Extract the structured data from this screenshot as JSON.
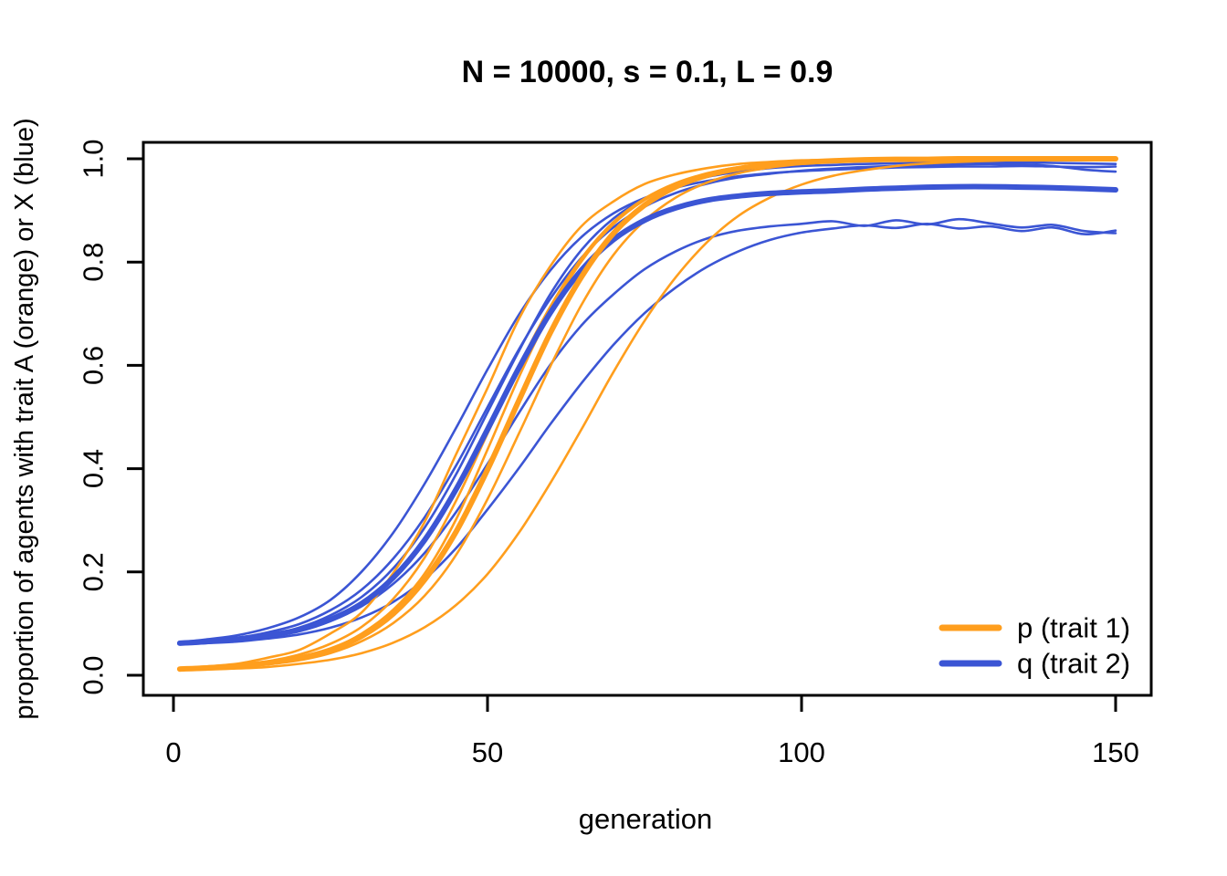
{
  "title": "N = 10000, s = 0.1, L = 0.9",
  "axes": {
    "x": {
      "label": "generation",
      "range": [
        0,
        150
      ],
      "ticks": [
        {
          "v": 0,
          "label": "0"
        },
        {
          "v": 50,
          "label": "50"
        },
        {
          "v": 100,
          "label": "100"
        },
        {
          "v": 150,
          "label": "150"
        }
      ]
    },
    "y": {
      "label": "proportion of agents with trait A (orange) or X (blue)",
      "range": [
        0,
        1
      ],
      "ticks": [
        {
          "v": 0.0,
          "label": "0.0"
        },
        {
          "v": 0.2,
          "label": "0.2"
        },
        {
          "v": 0.4,
          "label": "0.4"
        },
        {
          "v": 0.6,
          "label": "0.6"
        },
        {
          "v": 0.8,
          "label": "0.8"
        },
        {
          "v": 1.0,
          "label": "1.0"
        }
      ]
    }
  },
  "colors": {
    "p": "#FF9E1D",
    "q": "#3B55D4",
    "axis": "#000000"
  },
  "legend": [
    {
      "label": "p (trait 1)",
      "color_key": "p"
    },
    {
      "label": "q (trait 2)",
      "color_key": "q"
    }
  ],
  "chart_data": {
    "type": "line",
    "title": "N = 10000, s = 0.1, L = 0.9",
    "xlabel": "generation",
    "ylabel": "proportion of agents with trait A (orange) or X (blue)",
    "xlim": [
      0,
      150
    ],
    "ylim": [
      0,
      1
    ],
    "grid": false,
    "legend_position": "bottom-right",
    "x": [
      1,
      5,
      10,
      15,
      20,
      25,
      30,
      35,
      40,
      45,
      50,
      55,
      60,
      65,
      70,
      75,
      80,
      85,
      90,
      95,
      100,
      105,
      110,
      115,
      120,
      125,
      130,
      135,
      140,
      145,
      150
    ],
    "series": [
      {
        "name": "q run 1",
        "color_key": "q",
        "role": "run",
        "width": 2.6,
        "values": [
          0.064,
          0.069,
          0.077,
          0.091,
          0.112,
          0.146,
          0.201,
          0.276,
          0.371,
          0.479,
          0.592,
          0.698,
          0.784,
          0.849,
          0.894,
          0.924,
          0.944,
          0.957,
          0.966,
          0.972,
          0.976,
          0.979,
          0.981,
          0.983,
          0.984,
          0.985,
          0.985,
          0.986,
          0.985,
          0.984,
          0.985
        ]
      },
      {
        "name": "q run 2",
        "color_key": "q",
        "role": "run",
        "width": 2.6,
        "values": [
          0.062,
          0.066,
          0.072,
          0.083,
          0.099,
          0.126,
          0.166,
          0.226,
          0.306,
          0.406,
          0.519,
          0.631,
          0.729,
          0.809,
          0.867,
          0.907,
          0.934,
          0.952,
          0.964,
          0.971,
          0.977,
          0.981,
          0.984,
          0.986,
          0.988,
          0.989,
          0.99,
          0.989,
          0.986,
          0.979,
          0.975
        ]
      },
      {
        "name": "q run 3",
        "color_key": "q",
        "role": "run",
        "width": 2.6,
        "values": [
          0.061,
          0.064,
          0.069,
          0.078,
          0.092,
          0.116,
          0.152,
          0.207,
          0.286,
          0.389,
          0.509,
          0.628,
          0.738,
          0.824,
          0.884,
          0.923,
          0.949,
          0.965,
          0.975,
          0.982,
          0.986,
          0.988,
          0.99,
          0.991,
          0.992,
          0.992,
          0.993,
          0.993,
          0.992,
          0.991,
          0.99
        ]
      },
      {
        "name": "q run 4",
        "color_key": "q",
        "role": "run",
        "width": 2.6,
        "values": [
          0.06,
          0.063,
          0.068,
          0.075,
          0.087,
          0.105,
          0.134,
          0.177,
          0.237,
          0.316,
          0.409,
          0.508,
          0.601,
          0.678,
          0.737,
          0.786,
          0.821,
          0.846,
          0.861,
          0.869,
          0.874,
          0.879,
          0.87,
          0.881,
          0.873,
          0.883,
          0.875,
          0.867,
          0.872,
          0.86,
          0.856
        ]
      },
      {
        "name": "q run 5",
        "color_key": "q",
        "role": "run",
        "width": 2.6,
        "values": [
          0.06,
          0.062,
          0.065,
          0.071,
          0.079,
          0.092,
          0.112,
          0.142,
          0.186,
          0.246,
          0.321,
          0.401,
          0.486,
          0.566,
          0.639,
          0.701,
          0.751,
          0.791,
          0.821,
          0.843,
          0.857,
          0.865,
          0.871,
          0.866,
          0.874,
          0.865,
          0.869,
          0.86,
          0.867,
          0.854,
          0.861
        ]
      },
      {
        "name": "p run 1",
        "color_key": "p",
        "role": "run",
        "width": 2.6,
        "values": [
          0.013,
          0.017,
          0.022,
          0.034,
          0.049,
          0.081,
          0.122,
          0.198,
          0.297,
          0.428,
          0.556,
          0.69,
          0.792,
          0.87,
          0.917,
          0.951,
          0.97,
          0.982,
          0.99,
          0.994,
          0.997,
          0.998,
          0.999,
          1.0,
          1.0,
          1.0,
          1.0,
          1.0,
          1.0,
          1.0,
          1.0
        ]
      },
      {
        "name": "p run 2",
        "color_key": "p",
        "role": "run",
        "width": 2.6,
        "values": [
          0.012,
          0.015,
          0.019,
          0.027,
          0.04,
          0.061,
          0.094,
          0.148,
          0.228,
          0.338,
          0.468,
          0.598,
          0.714,
          0.808,
          0.877,
          0.923,
          0.953,
          0.972,
          0.984,
          0.991,
          0.995,
          0.997,
          0.998,
          0.999,
          1.0,
          1.0,
          1.0,
          1.0,
          1.0,
          1.0,
          1.0
        ]
      },
      {
        "name": "p run 3",
        "color_key": "p",
        "role": "run",
        "width": 2.6,
        "values": [
          0.011,
          0.014,
          0.018,
          0.024,
          0.035,
          0.051,
          0.081,
          0.127,
          0.197,
          0.302,
          0.437,
          0.577,
          0.703,
          0.802,
          0.873,
          0.92,
          0.951,
          0.971,
          0.983,
          0.99,
          0.994,
          0.997,
          0.998,
          0.999,
          1.0,
          1.0,
          1.0,
          1.0,
          1.0,
          1.0,
          1.0
        ]
      },
      {
        "name": "p run 4",
        "color_key": "p",
        "role": "run",
        "width": 2.6,
        "values": [
          0.011,
          0.013,
          0.016,
          0.021,
          0.029,
          0.043,
          0.066,
          0.101,
          0.154,
          0.233,
          0.341,
          0.468,
          0.598,
          0.718,
          0.813,
          0.88,
          0.925,
          0.954,
          0.972,
          0.983,
          0.99,
          0.994,
          0.996,
          0.998,
          0.999,
          1.0,
          1.0,
          1.0,
          1.0,
          1.0,
          1.0
        ]
      },
      {
        "name": "p run 5",
        "color_key": "p",
        "role": "run",
        "width": 2.6,
        "values": [
          0.01,
          0.011,
          0.013,
          0.016,
          0.022,
          0.03,
          0.043,
          0.063,
          0.093,
          0.136,
          0.196,
          0.276,
          0.372,
          0.477,
          0.586,
          0.686,
          0.771,
          0.839,
          0.89,
          0.925,
          0.95,
          0.967,
          0.978,
          0.986,
          0.991,
          0.994,
          0.996,
          0.998,
          0.999,
          0.999,
          1.0
        ]
      },
      {
        "name": "q mean (trait 2)",
        "color_key": "q",
        "role": "mean",
        "width": 6,
        "values": [
          0.062,
          0.065,
          0.07,
          0.077,
          0.088,
          0.108,
          0.139,
          0.189,
          0.262,
          0.36,
          0.476,
          0.595,
          0.702,
          0.785,
          0.843,
          0.881,
          0.905,
          0.92,
          0.928,
          0.933,
          0.936,
          0.938,
          0.941,
          0.943,
          0.945,
          0.946,
          0.946,
          0.945,
          0.944,
          0.942,
          0.94
        ]
      },
      {
        "name": "p mean (trait 1)",
        "color_key": "p",
        "role": "mean",
        "width": 6,
        "values": [
          0.012,
          0.014,
          0.018,
          0.024,
          0.033,
          0.049,
          0.076,
          0.119,
          0.185,
          0.278,
          0.398,
          0.532,
          0.663,
          0.772,
          0.855,
          0.91,
          0.946,
          0.968,
          0.981,
          0.989,
          0.993,
          0.996,
          0.998,
          0.999,
          0.999,
          1.0,
          1.0,
          1.0,
          1.0,
          1.0,
          1.0
        ]
      }
    ]
  }
}
